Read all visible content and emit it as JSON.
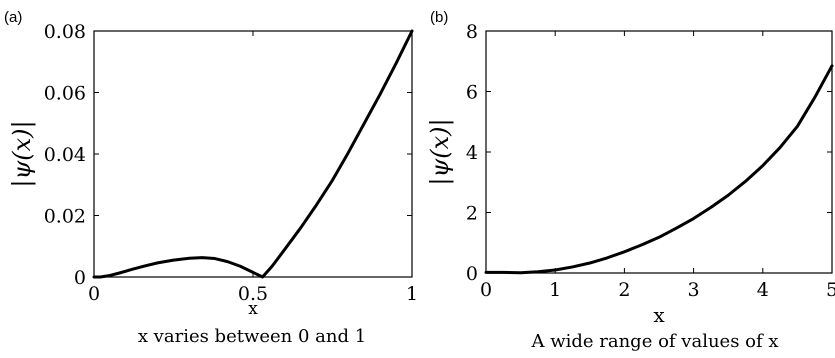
{
  "chart_data": [
    {
      "panel_label": "(a)",
      "type": "line",
      "ylabel": "|ψ(x)|",
      "xlabel": "x",
      "caption": "x varies between 0 and 1",
      "xlim": [
        0,
        1
      ],
      "ylim": [
        0,
        0.08
      ],
      "xticks": [
        "0",
        "0.5",
        "1"
      ],
      "yticks": [
        "0",
        "0.02",
        "0.04",
        "0.06",
        "0.08"
      ],
      "grid": false,
      "series": [
        {
          "x": [
            0,
            0.02,
            0.05,
            0.08,
            0.12,
            0.16,
            0.2,
            0.25,
            0.3,
            0.34,
            0.38,
            0.42,
            0.46,
            0.5,
            0.53,
            0.56,
            0.6,
            0.65,
            0.7,
            0.75,
            0.8,
            0.85,
            0.9,
            0.95,
            1.0
          ],
          "values": [
            0,
            0,
            0.0005,
            0.0013,
            0.0025,
            0.0036,
            0.0046,
            0.0055,
            0.0061,
            0.0063,
            0.006,
            0.005,
            0.0035,
            0.0015,
            0,
            0.0035,
            0.009,
            0.016,
            0.0235,
            0.0315,
            0.0405,
            0.05,
            0.0595,
            0.0695,
            0.08
          ]
        }
      ]
    },
    {
      "panel_label": "(b)",
      "type": "line",
      "ylabel": "|ψ(x)|",
      "xlabel": "x",
      "caption": "A wide range of values of x",
      "xlim": [
        0,
        5
      ],
      "ylim": [
        0,
        8
      ],
      "xticks": [
        "0",
        "1",
        "2",
        "3",
        "4",
        "5"
      ],
      "yticks": [
        "0",
        "2",
        "4",
        "6",
        "8"
      ],
      "grid": false,
      "series": [
        {
          "x": [
            0,
            0.25,
            0.5,
            0.75,
            1.0,
            1.25,
            1.5,
            1.75,
            2.0,
            2.25,
            2.5,
            2.75,
            3.0,
            3.25,
            3.5,
            3.75,
            4.0,
            4.25,
            4.5,
            4.75,
            5.0
          ],
          "values": [
            0.02,
            0.02,
            0.01,
            0.04,
            0.1,
            0.2,
            0.33,
            0.5,
            0.7,
            0.93,
            1.18,
            1.48,
            1.8,
            2.17,
            2.57,
            3.03,
            3.55,
            4.15,
            4.85,
            5.8,
            6.85
          ]
        }
      ]
    }
  ]
}
